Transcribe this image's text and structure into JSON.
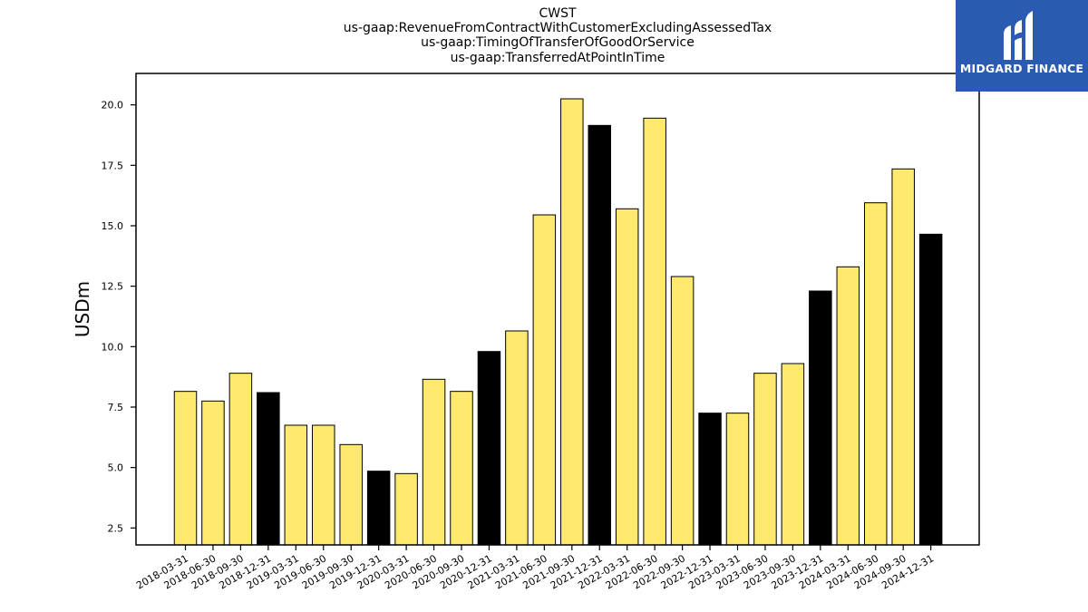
{
  "chart_data": {
    "type": "bar",
    "title": "CWST",
    "subtitle_lines": [
      "us-gaap:RevenueFromContractWithCustomerExcludingAssessedTax",
      "us-gaap:TimingOfTransferOfGoodOrService",
      "us-gaap:TransferredAtPointInTime"
    ],
    "xlabel": "",
    "ylabel": "USDm",
    "ylim": [
      1.8,
      21.3
    ],
    "yticks": [
      "2.5",
      "5.0",
      "7.5",
      "10.0",
      "12.5",
      "15.0",
      "17.5",
      "20.0"
    ],
    "grid": false,
    "categories": [
      "2018-03-31",
      "2018-06-30",
      "2018-09-30",
      "2018-12-31",
      "2019-03-31",
      "2019-06-30",
      "2019-09-30",
      "2019-12-31",
      "2020-03-31",
      "2020-06-30",
      "2020-09-30",
      "2020-12-31",
      "2021-03-31",
      "2021-06-30",
      "2021-09-30",
      "2021-12-31",
      "2022-03-31",
      "2022-06-30",
      "2022-09-30",
      "2022-12-31",
      "2023-03-31",
      "2023-06-30",
      "2023-09-30",
      "2023-12-31",
      "2024-03-31",
      "2024-06-30",
      "2024-09-30",
      "2024-12-31"
    ],
    "values": [
      8.15,
      7.75,
      8.9,
      8.1,
      6.75,
      6.75,
      5.95,
      4.85,
      4.75,
      8.65,
      8.15,
      9.8,
      10.65,
      15.45,
      20.25,
      19.15,
      15.7,
      19.45,
      12.9,
      7.25,
      7.25,
      8.9,
      9.3,
      12.3,
      13.3,
      15.95,
      17.35,
      14.65
    ],
    "colors": {
      "quarter": "#fde96e",
      "year_end": "#000000",
      "edge": "#000000"
    }
  },
  "logo": {
    "text": "MIDGARD FINANCE",
    "background": "#2b5bb0"
  }
}
